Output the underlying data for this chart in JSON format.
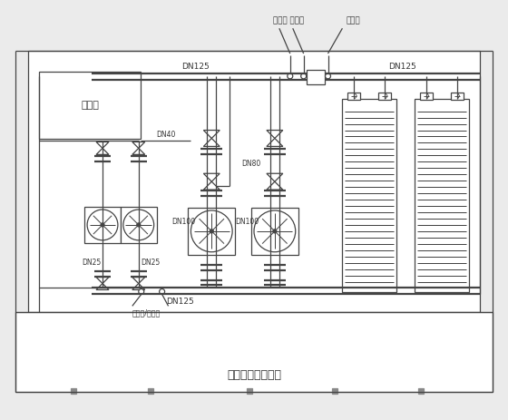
{
  "bg_color": "#ebebeb",
  "line_color": "#444444",
  "lw": 0.9,
  "lw2": 1.6,
  "title": "高、中区采暖机组",
  "peidian": "配电柜",
  "dn40": "DN40",
  "dn25_1": "DN25",
  "dn25_2": "DN25",
  "dn125_bot": "DN125",
  "dn125_top_l": "DN125",
  "dn125_top_r": "DN125",
  "dn100_1": "DN100",
  "dn80": "DN80",
  "dn100_2": "DN100",
  "yali": "压力表/安全阀",
  "wendu_l": "温度计 压力表",
  "wendu_r": "温度计",
  "fig_width": 5.6,
  "fig_height": 4.63,
  "dpi": 100
}
